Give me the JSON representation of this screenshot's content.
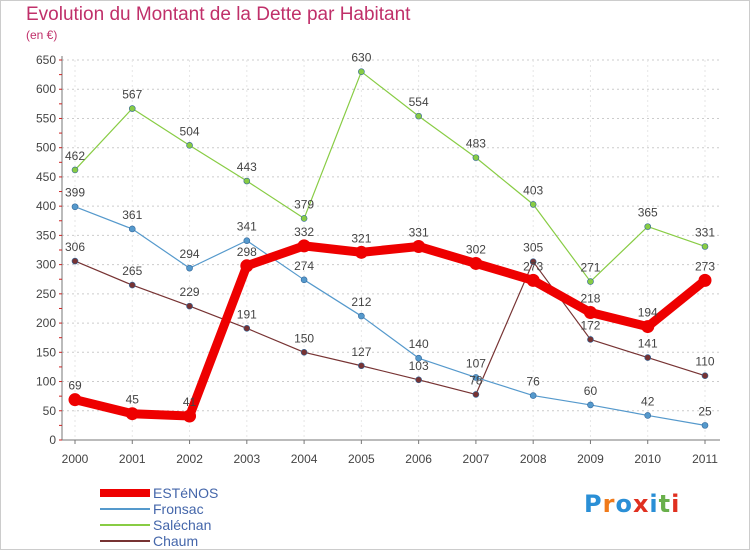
{
  "title": "Evolution du Montant de la Dette par Habitant",
  "subtitle": "(en €)",
  "logo": {
    "text": "Proxiti",
    "colors": [
      "#2a8fd6",
      "#f07a1a",
      "#2a8fd6",
      "#e03020",
      "#2a8fd6",
      "#6ab04c",
      "#e03020"
    ]
  },
  "chart_data": {
    "type": "line",
    "title": "Evolution du Montant de la Dette par Habitant",
    "subtitle": "(en €)",
    "xlabel": "",
    "ylabel": "",
    "categories": [
      "2000",
      "2001",
      "2002",
      "2003",
      "2004",
      "2005",
      "2006",
      "2007",
      "2008",
      "2009",
      "2010",
      "2011"
    ],
    "ylim": [
      0,
      650
    ],
    "yticks": [
      0,
      50,
      100,
      150,
      200,
      250,
      300,
      350,
      400,
      450,
      500,
      550,
      600,
      650
    ],
    "grid": true,
    "legend_position": "bottom-left",
    "series": [
      {
        "name": "ESTéNOS",
        "color": "#ee0000",
        "width": 9,
        "values": [
          69,
          45,
          41,
          298,
          332,
          321,
          331,
          302,
          273,
          218,
          194,
          273
        ],
        "labels": [
          "69",
          "45",
          "41",
          "298",
          "332",
          "321",
          "331",
          "302",
          "273",
          "218",
          "194",
          "273"
        ]
      },
      {
        "name": "Fronsac",
        "color": "#5599cc",
        "width": 1.2,
        "values": [
          399,
          361,
          294,
          341,
          274,
          212,
          140,
          107,
          76,
          60,
          42,
          25
        ],
        "labels": [
          "399",
          "361",
          "294",
          "341",
          "274",
          "212",
          "140",
          "107",
          "76",
          "60",
          "42",
          "25"
        ]
      },
      {
        "name": "Saléchan",
        "color": "#88cc44",
        "width": 1.2,
        "values": [
          462,
          567,
          504,
          443,
          379,
          630,
          554,
          483,
          403,
          271,
          365,
          331
        ],
        "labels": [
          "462",
          "567",
          "504",
          "443",
          "379",
          "630",
          "554",
          "483",
          "403",
          "271",
          "365",
          "331"
        ]
      },
      {
        "name": "Chaum",
        "color": "#773333",
        "width": 1.2,
        "values": [
          306,
          265,
          229,
          191,
          150,
          127,
          103,
          78,
          305,
          172,
          141,
          110
        ],
        "labels": [
          "306",
          "265",
          "229",
          "191",
          "150",
          "127",
          "103",
          "78",
          "305",
          "172",
          "141",
          "110"
        ]
      }
    ]
  }
}
